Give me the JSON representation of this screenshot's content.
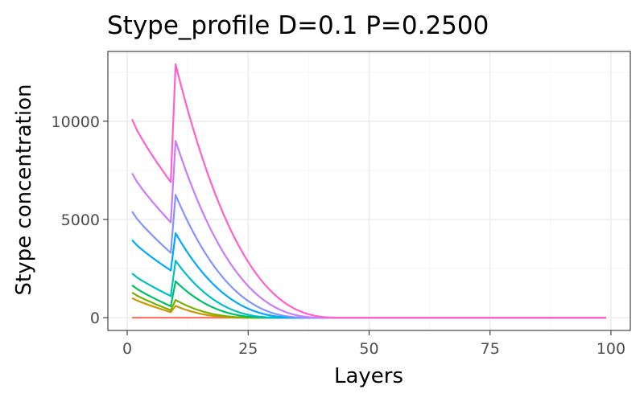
{
  "chart_data": {
    "type": "line",
    "title": "Stype_profile D=0.1 P=0.2500",
    "xlabel": "Layers",
    "ylabel": "Stype concentration",
    "xlim": [
      -4,
      104
    ],
    "ylim": [
      -650,
      13550
    ],
    "x_ticks": [
      0,
      25,
      50,
      75,
      100
    ],
    "x_tick_labels": [
      "0",
      "25",
      "50",
      "75",
      "100"
    ],
    "y_ticks": [
      0,
      5000,
      10000
    ],
    "y_tick_labels": [
      "0",
      "5000",
      "10000"
    ],
    "x_minor_ticks": [
      12.5,
      37.5,
      62.5,
      87.5
    ],
    "y_minor_ticks": [
      2500,
      7500,
      12500
    ],
    "grid": true,
    "legend": "none",
    "x_range": [
      1,
      99
    ],
    "jump_layers": [
      9,
      10
    ],
    "series": [
      {
        "color": "#F8766D",
        "start_value": 0,
        "jump_low": 0,
        "peak": 0,
        "decay_end": 25
      },
      {
        "color": "#CD9600",
        "start_value": 1000,
        "jump_low": 280,
        "peak": 600,
        "decay_end": 25
      },
      {
        "color": "#7CAE00",
        "start_value": 1280,
        "jump_low": 380,
        "peak": 900,
        "decay_end": 27
      },
      {
        "color": "#00BE67",
        "start_value": 1650,
        "jump_low": 580,
        "peak": 1850,
        "decay_end": 30
      },
      {
        "color": "#00BFC4",
        "start_value": 2250,
        "jump_low": 1100,
        "peak": 2900,
        "decay_end": 32
      },
      {
        "color": "#00A9FF",
        "start_value": 3950,
        "jump_low": 2400,
        "peak": 4300,
        "decay_end": 36
      },
      {
        "color": "#8494FF",
        "start_value": 5400,
        "jump_low": 3300,
        "peak": 6250,
        "decay_end": 38
      },
      {
        "color": "#C77CFF",
        "start_value": 7350,
        "jump_low": 4850,
        "peak": 9000,
        "decay_end": 41
      },
      {
        "color": "#FF61CC",
        "start_value": 10100,
        "jump_low": 6900,
        "peak": 12900,
        "decay_end": 44
      }
    ]
  }
}
